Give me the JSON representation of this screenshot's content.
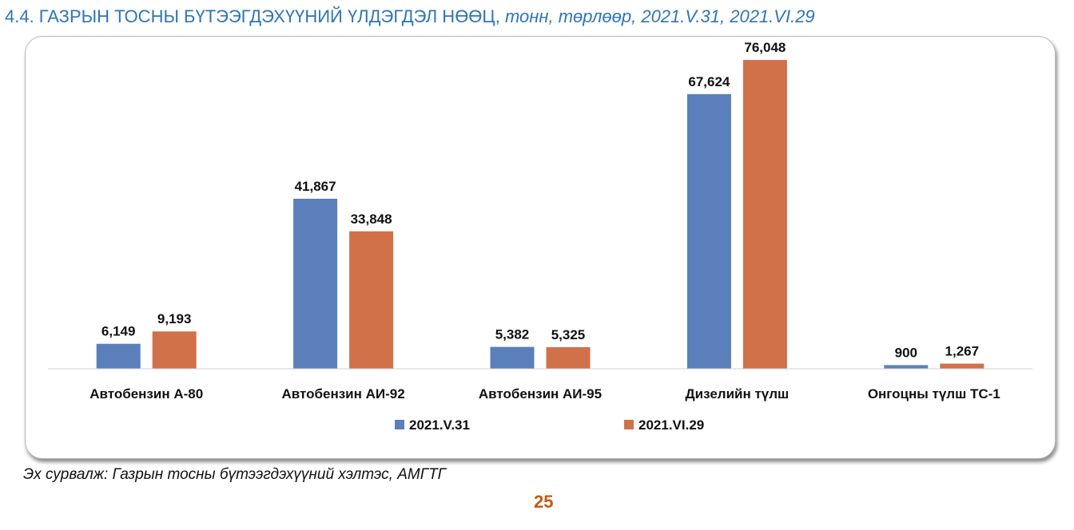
{
  "header": {
    "title_main": "4.4. ГАЗРЫН ТОСНЫ БҮТЭЭГДЭХҮҮНИЙ ҮЛДЭГДЭЛ НӨӨЦ,",
    "title_units": "тонн, төрлөөр, 2021.V.31, 2021.VI.29"
  },
  "footer": {
    "source": "Эх сурвалж: Газрын тосны бүтээгдэхүүний хэлтэс, АМГТГ",
    "page_number": "25"
  },
  "chart_data": {
    "type": "bar",
    "title": "",
    "xlabel": "",
    "ylabel": "",
    "ylim": [
      0,
      80000
    ],
    "grid": false,
    "legend_position": "bottom",
    "categories": [
      "Автобензин А-80",
      "Автобензин АИ-92",
      "Автобензин АИ-95",
      "Дизелийн түлш",
      "Онгоцны түлш ТС-1"
    ],
    "series": [
      {
        "name": "2021.V.31",
        "color": "#5B7FBA",
        "values": [
          6149,
          41867,
          5382,
          67624,
          900
        ],
        "labels": [
          "6,149",
          "41,867",
          "5,382",
          "67,624",
          "900"
        ]
      },
      {
        "name": "2021.VI.29",
        "color": "#D0714A",
        "values": [
          9193,
          33848,
          5325,
          76048,
          1267
        ],
        "labels": [
          "9,193",
          "33,848",
          "5,325",
          "76,048",
          "1,267"
        ]
      }
    ]
  }
}
